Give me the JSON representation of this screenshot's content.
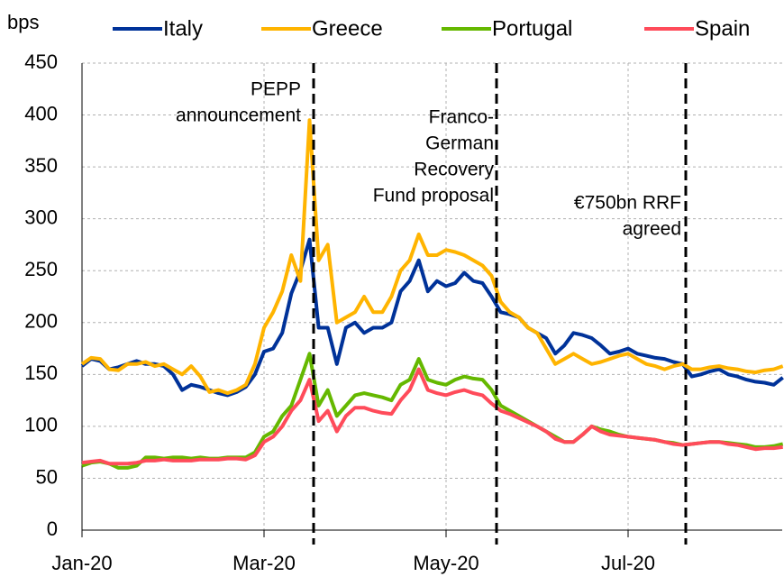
{
  "chart_data": {
    "type": "line",
    "y_axis_label": "bps",
    "categories": [
      "Jan-20",
      null,
      null,
      null,
      null,
      null,
      null,
      null,
      null,
      null,
      null,
      null,
      null,
      null,
      null,
      null,
      null,
      null,
      null,
      null,
      "Mar-20",
      null,
      null,
      null,
      null,
      null,
      null,
      null,
      null,
      null,
      null,
      null,
      null,
      null,
      null,
      null,
      null,
      null,
      null,
      null,
      "May-20",
      null,
      null,
      null,
      null,
      null,
      null,
      null,
      null,
      null,
      null,
      null,
      null,
      null,
      null,
      null,
      null,
      null,
      null,
      null,
      "Jul-20",
      null,
      null,
      null,
      null,
      null,
      null,
      null,
      null,
      null,
      null,
      null,
      null,
      null,
      null,
      null,
      null,
      null
    ],
    "series": [
      {
        "name": "Italy",
        "color": "#003299",
        "values": [
          158,
          165,
          163,
          155,
          157,
          160,
          163,
          160,
          160,
          158,
          150,
          135,
          140,
          138,
          135,
          132,
          130,
          133,
          138,
          150,
          172,
          175,
          190,
          228,
          250,
          280,
          195,
          195,
          160,
          195,
          200,
          190,
          195,
          195,
          200,
          230,
          240,
          260,
          230,
          240,
          235,
          238,
          248,
          240,
          238,
          225,
          210,
          208,
          205,
          195,
          190,
          185,
          170,
          178,
          190,
          188,
          185,
          178,
          170,
          172,
          175,
          170,
          168,
          166,
          165,
          162,
          160,
          148,
          150,
          153,
          155,
          150,
          148,
          145,
          143,
          142,
          140,
          147
        ]
      },
      {
        "name": "Greece",
        "color": "#ffb400",
        "values": [
          160,
          166,
          165,
          155,
          154,
          160,
          160,
          162,
          158,
          160,
          155,
          150,
          158,
          148,
          133,
          135,
          132,
          135,
          140,
          160,
          195,
          210,
          230,
          265,
          240,
          395,
          260,
          275,
          200,
          205,
          210,
          225,
          210,
          210,
          225,
          250,
          260,
          285,
          265,
          265,
          270,
          268,
          265,
          260,
          255,
          245,
          220,
          210,
          205,
          195,
          190,
          175,
          160,
          165,
          170,
          165,
          160,
          162,
          165,
          168,
          170,
          165,
          160,
          158,
          155,
          158,
          160,
          155,
          155,
          157,
          158,
          156,
          155,
          153,
          152,
          154,
          155,
          158
        ]
      },
      {
        "name": "Portugal",
        "color": "#65b800",
        "values": [
          62,
          65,
          66,
          64,
          60,
          60,
          62,
          70,
          70,
          69,
          70,
          70,
          69,
          70,
          69,
          69,
          70,
          70,
          70,
          75,
          90,
          95,
          110,
          120,
          145,
          170,
          120,
          135,
          110,
          120,
          130,
          132,
          130,
          128,
          125,
          140,
          145,
          165,
          145,
          142,
          140,
          145,
          148,
          146,
          145,
          135,
          120,
          115,
          110,
          105,
          100,
          95,
          90,
          85,
          85,
          92,
          100,
          97,
          95,
          92,
          90,
          89,
          88,
          87,
          85,
          84,
          82,
          83,
          84,
          85,
          85,
          84,
          83,
          82,
          80,
          80,
          81,
          83
        ]
      },
      {
        "name": "Spain",
        "color": "#ff4b5a",
        "values": [
          65,
          66,
          67,
          64,
          64,
          64,
          65,
          67,
          67,
          68,
          67,
          67,
          67,
          68,
          68,
          68,
          69,
          69,
          68,
          72,
          85,
          90,
          100,
          115,
          125,
          145,
          105,
          115,
          95,
          110,
          118,
          118,
          115,
          113,
          112,
          125,
          135,
          155,
          135,
          132,
          130,
          133,
          135,
          132,
          130,
          122,
          115,
          112,
          108,
          104,
          100,
          95,
          88,
          85,
          85,
          92,
          100,
          95,
          92,
          91,
          90,
          89,
          88,
          87,
          85,
          83,
          82,
          83,
          84,
          85,
          85,
          83,
          82,
          80,
          78,
          79,
          79,
          80
        ]
      }
    ],
    "ylim": [
      0,
      450
    ],
    "yticks": [
      0,
      50,
      100,
      150,
      200,
      250,
      300,
      350,
      400,
      450
    ],
    "grid": true,
    "legend": "top",
    "annotations": [
      {
        "lines": [
          "PEPP",
          "announcement"
        ]
      },
      {
        "lines": [
          "Franco-",
          "German",
          "Recovery",
          "Fund proposal"
        ]
      },
      {
        "lines": [
          "€750bn RRF",
          "agreed"
        ]
      }
    ]
  }
}
